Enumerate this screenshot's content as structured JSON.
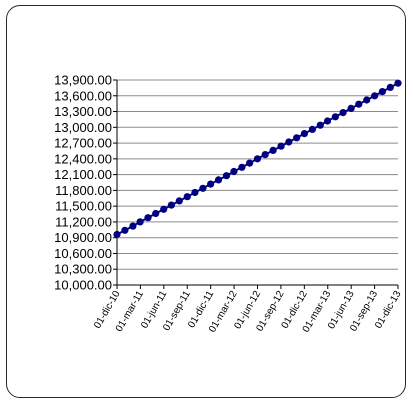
{
  "chart_data": {
    "type": "line",
    "title": "",
    "xlabel": "",
    "ylabel": "",
    "y_tick_labels": [
      "10,000.00",
      "10,300.00",
      "10,600.00",
      "10,900.00",
      "11,200.00",
      "11,500.00",
      "11,800.00",
      "12,100.00",
      "12,400.00",
      "12,700.00",
      "13,000.00",
      "13,300.00",
      "13,600.00",
      "13,900.00"
    ],
    "y_ticks": [
      10000,
      10300,
      10600,
      10900,
      11200,
      11500,
      11800,
      12100,
      12400,
      12700,
      13000,
      13300,
      13600,
      13900
    ],
    "ylim": [
      10000,
      13900
    ],
    "x_tick_labels": [
      "01-dic-10",
      "01-mar-11",
      "01-jun-11",
      "01-sep-11",
      "01-dic-11",
      "01-mar-12",
      "01-jun-12",
      "01-sep-12",
      "01-dic-12",
      "01-mar-13",
      "01-jun-13",
      "01-sep-13",
      "01-dic-13"
    ],
    "x_range": [
      "2010-12-01",
      "2013-12-01"
    ],
    "grid": "horizontal",
    "legend": "none",
    "series": [
      {
        "color": "#000080",
        "marker": "circle",
        "x": [
          "2010-12-01",
          "2011-01-01",
          "2011-02-01",
          "2011-03-01",
          "2011-04-01",
          "2011-05-01",
          "2011-06-01",
          "2011-07-01",
          "2011-08-01",
          "2011-09-01",
          "2011-10-01",
          "2011-11-01",
          "2011-12-01",
          "2012-01-01",
          "2012-02-01",
          "2012-03-01",
          "2012-04-01",
          "2012-05-01",
          "2012-06-01",
          "2012-07-01",
          "2012-08-01",
          "2012-09-01",
          "2012-10-01",
          "2012-11-01",
          "2012-12-01",
          "2013-01-01",
          "2013-02-01",
          "2013-03-01",
          "2013-04-01",
          "2013-05-01",
          "2013-06-01",
          "2013-07-01",
          "2013-08-01",
          "2013-09-01",
          "2013-10-01",
          "2013-11-01",
          "2013-12-01"
        ],
        "y": [
          10960,
          11040,
          11120,
          11200,
          11280,
          11360,
          11440,
          11520,
          11600,
          11680,
          11760,
          11840,
          11920,
          12000,
          12080,
          12160,
          12240,
          12320,
          12400,
          12480,
          12560,
          12640,
          12720,
          12800,
          12880,
          12960,
          13040,
          13120,
          13200,
          13280,
          13360,
          13440,
          13520,
          13600,
          13680,
          13760,
          13840
        ]
      }
    ]
  }
}
